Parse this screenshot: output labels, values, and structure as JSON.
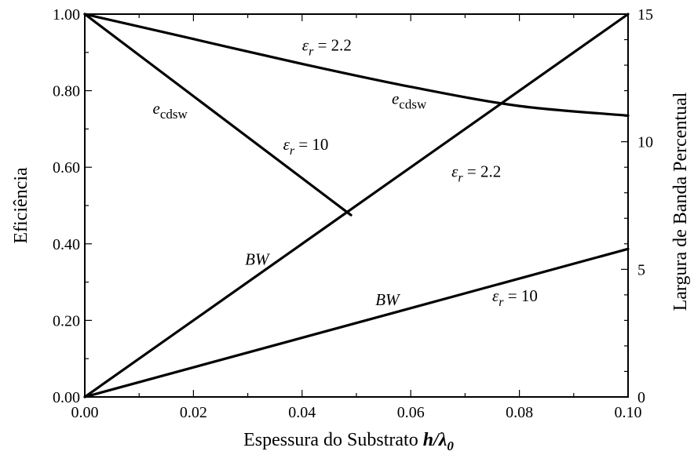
{
  "chart_data": {
    "type": "line",
    "xlabel": "Espessura do Substrato h/λ0",
    "xlabel_parts": {
      "text": "Espessura do Substrato ",
      "var": "h/λ",
      "sub": "0"
    },
    "ylabel": "Eficiência",
    "y2label": "Largura de Banda Percentual",
    "xlim": [
      0,
      0.1
    ],
    "ylim": [
      0,
      1.0
    ],
    "y2lim": [
      0,
      15
    ],
    "x_ticks": [
      0,
      0.02,
      0.04,
      0.06,
      0.08,
      0.1
    ],
    "x_tick_labels": [
      "0.00",
      "0.02",
      "0.04",
      "0.06",
      "0.08",
      "0.10"
    ],
    "y_ticks": [
      0,
      0.2,
      0.4,
      0.6,
      0.8,
      1.0
    ],
    "y_tick_labels": [
      "0.00",
      "0.20",
      "0.40",
      "0.60",
      "0.80",
      "1.00"
    ],
    "y2_ticks": [
      0,
      5,
      10,
      15
    ],
    "y2_tick_labels": [
      "0",
      "5",
      "10",
      "15"
    ],
    "grid": false,
    "series": [
      {
        "axis": "left",
        "x": [
          0,
          0.02,
          0.04,
          0.06,
          0.08,
          0.1
        ],
        "y": [
          1.0,
          0.935,
          0.87,
          0.81,
          0.76,
          0.735
        ]
      },
      {
        "axis": "left",
        "x": [
          0,
          0.049
        ],
        "y": [
          1.0,
          0.475
        ]
      },
      {
        "axis": "right",
        "x": [
          0,
          0.1
        ],
        "y": [
          0,
          15
        ]
      },
      {
        "axis": "right",
        "x": [
          0,
          0.1
        ],
        "y": [
          0,
          5.8
        ]
      }
    ],
    "annotations": [
      {
        "base": "ε",
        "sub": "r",
        "rest": " = 2.2",
        "x": 0.04,
        "y": 0.905
      },
      {
        "base": "e",
        "sub": "cdsw",
        "rest": "",
        "x": 0.0125,
        "y": 0.74
      },
      {
        "base": "e",
        "sub": "cdsw",
        "rest": "",
        "x": 0.0565,
        "y": 0.765
      },
      {
        "base": "ε",
        "sub": "r",
        "rest": " = 10",
        "x": 0.0365,
        "y": 0.645
      },
      {
        "base": "ε",
        "sub": "r",
        "rest": " = 2.2",
        "x": 0.0675,
        "y": 0.575
      },
      {
        "base": "BW",
        "sub": "",
        "rest": "",
        "x": 0.0295,
        "y": 0.345
      },
      {
        "base": "BW",
        "sub": "",
        "rest": "",
        "x": 0.0535,
        "y": 0.24
      },
      {
        "base": "ε",
        "sub": "r",
        "rest": " = 10",
        "x": 0.075,
        "y": 0.25
      }
    ]
  }
}
